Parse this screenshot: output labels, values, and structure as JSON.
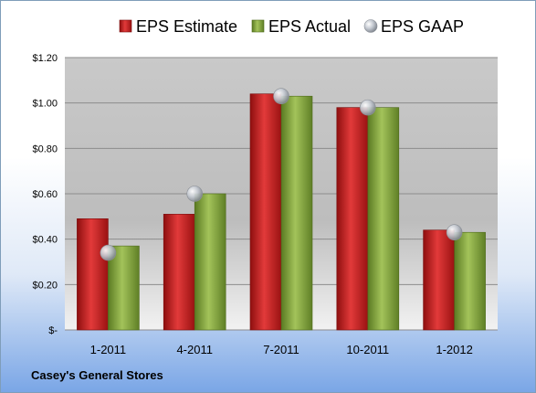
{
  "chart_data": {
    "type": "bar",
    "categories": [
      "1-2011",
      "4-2011",
      "7-2011",
      "10-2011",
      "1-2012"
    ],
    "series": [
      {
        "name": "EPS Estimate",
        "values": [
          0.49,
          0.51,
          1.04,
          0.98,
          0.44
        ],
        "color": "#c41a1a"
      },
      {
        "name": "EPS Actual",
        "values": [
          0.37,
          0.6,
          1.03,
          0.98,
          0.43
        ],
        "color": "#7fa33b"
      },
      {
        "name": "EPS GAAP",
        "values": [
          0.34,
          0.6,
          1.03,
          0.98,
          0.43
        ],
        "color": "#b9bec6"
      }
    ],
    "y_ticks": [
      "$-",
      "$0.20",
      "$0.40",
      "$0.60",
      "$0.80",
      "$1.00",
      "$1.20"
    ],
    "ylim": [
      0,
      1.2
    ],
    "grid": true,
    "legend": "top"
  },
  "footer": "Casey's General Stores"
}
